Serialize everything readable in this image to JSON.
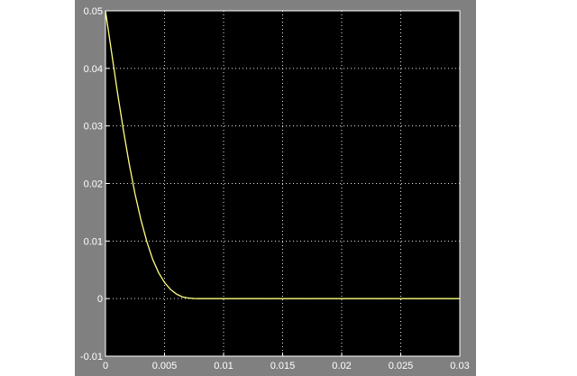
{
  "chart_data": {
    "type": "line",
    "title": "",
    "xlabel": "",
    "ylabel": "",
    "xlim": [
      0,
      0.03
    ],
    "ylim": [
      -0.01,
      0.05
    ],
    "grid": true,
    "x_ticks": [
      0,
      0.005,
      0.01,
      0.015,
      0.02,
      0.025,
      0.03
    ],
    "x_tick_labels": [
      "0",
      "0.005",
      "0.01",
      "0.015",
      "0.02",
      "0.025",
      "0.03"
    ],
    "y_ticks": [
      -0.01,
      0,
      0.01,
      0.02,
      0.03,
      0.04,
      0.05
    ],
    "y_tick_labels": [
      "-0.01",
      "0",
      "0.01",
      "0.02",
      "0.03",
      "0.04",
      "0.05"
    ],
    "series": [
      {
        "color": "#ffff80",
        "x": [
          0,
          0.0005,
          0.001,
          0.0015,
          0.002,
          0.0025,
          0.003,
          0.0035,
          0.004,
          0.0045,
          0.005,
          0.0055,
          0.006,
          0.0065,
          0.007,
          0.0075,
          0.008,
          0.009,
          0.01,
          0.015,
          0.02,
          0.025,
          0.03
        ],
        "y": [
          0.05,
          0.043,
          0.036,
          0.0295,
          0.0235,
          0.0182,
          0.0137,
          0.0099,
          0.0068,
          0.0045,
          0.0028,
          0.0016,
          0.0008,
          0.0003,
          0.0001,
          2e-05,
          0,
          0,
          0,
          0,
          0,
          0,
          0
        ]
      }
    ]
  },
  "colors": {
    "frame_background": "#808080",
    "axes_background": "#000000",
    "axes_foreground": "#ffffff",
    "trace": "#ffff80"
  }
}
